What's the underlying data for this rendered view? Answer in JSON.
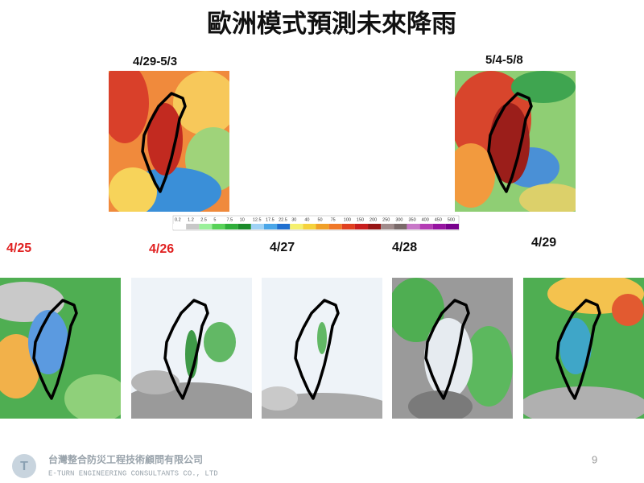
{
  "header": {
    "title": "歐洲模式預測未來降雨"
  },
  "periods": [
    {
      "label": "4/29-5/3"
    },
    {
      "label": "5/4-5/8"
    }
  ],
  "scale": {
    "labels": [
      "0.2",
      "1.2",
      "2.5",
      "5",
      "7.5",
      "10",
      "12.5",
      "17.5",
      "22.5",
      "30",
      "40",
      "50",
      "75",
      "100",
      "150",
      "200",
      "250",
      "300",
      "350",
      "400",
      "450",
      "500"
    ]
  },
  "days": [
    {
      "label": "4/25"
    },
    {
      "label": "4/26"
    },
    {
      "label": "4/27"
    },
    {
      "label": "4/28"
    },
    {
      "label": "4/29"
    }
  ],
  "footer": {
    "company": "台灣整合防災工程技術顧問有限公司",
    "company_en": "E-TURN ENGINEERING CONSULTANTS CO., LTD",
    "page": "9"
  }
}
